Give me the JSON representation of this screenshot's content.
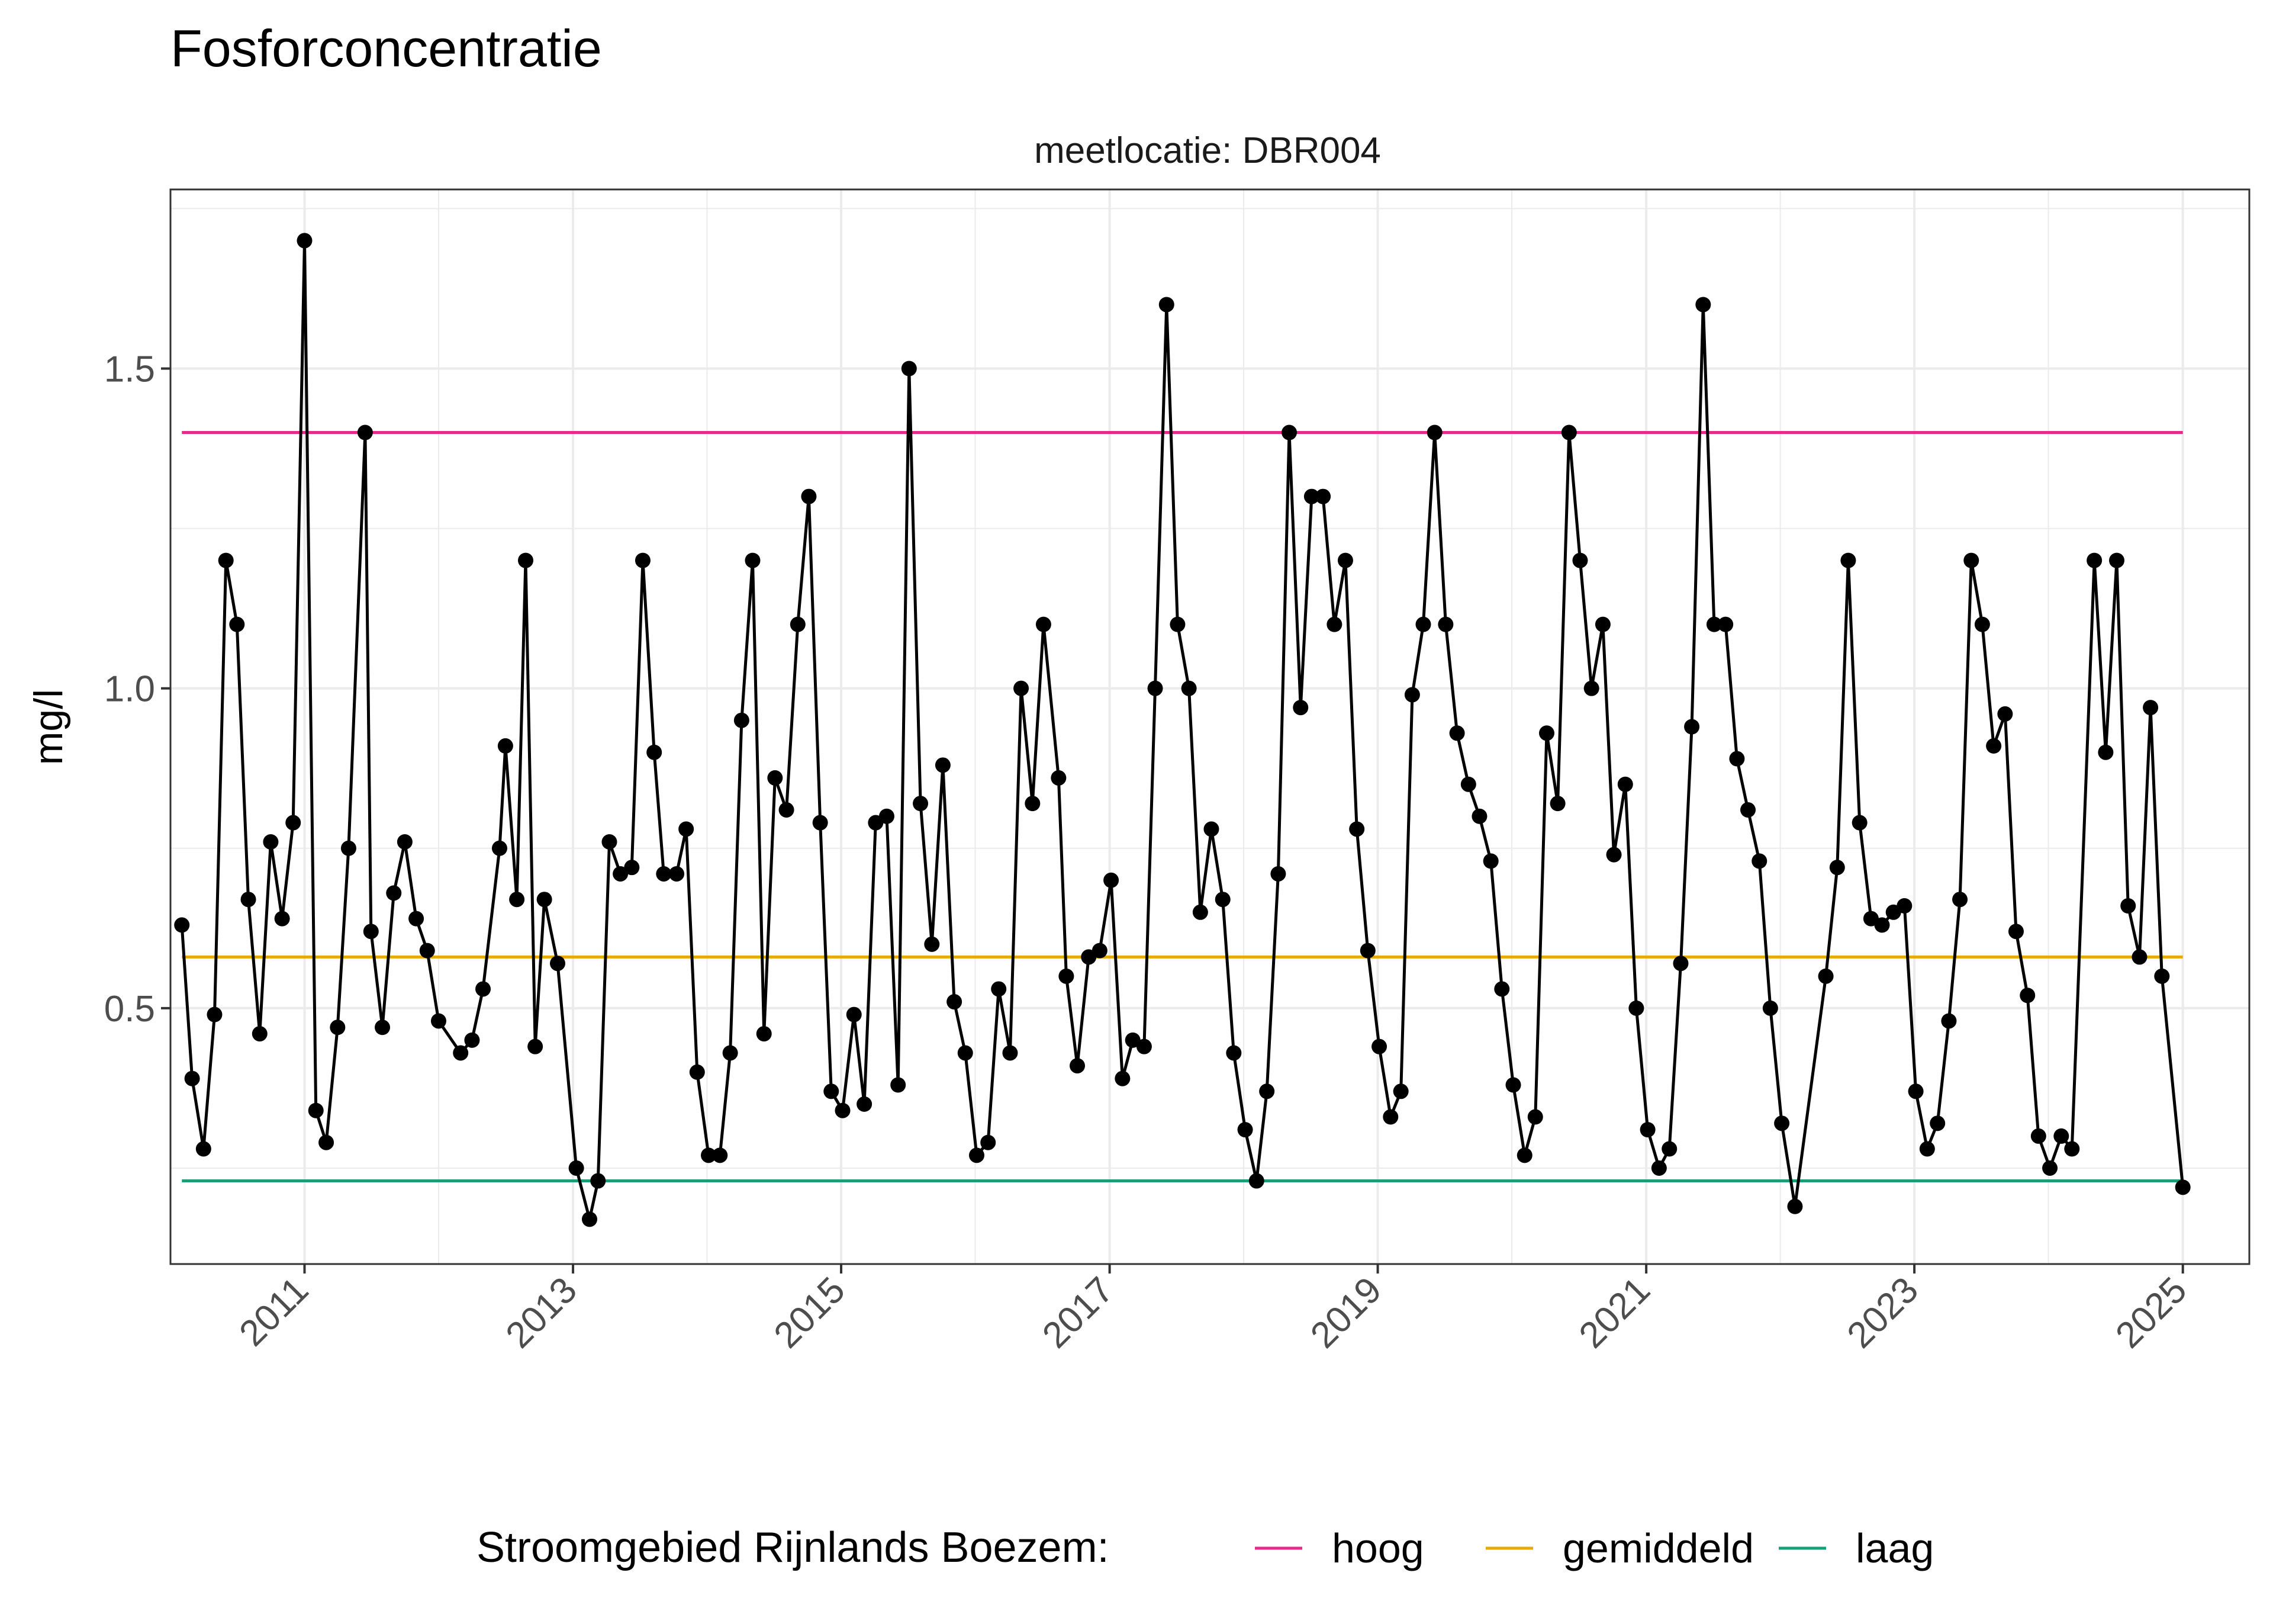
{
  "chart_data": {
    "type": "line",
    "title": "Fosforconcentratie",
    "subtitle": "meetlocatie: DBR004",
    "ylabel": "mg/l",
    "xlabel": "",
    "xlim": [
      "2010-01-01",
      "2025-07-01"
    ],
    "ylim": [
      0.1,
      1.78
    ],
    "y_ticks": [
      0.5,
      1.0,
      1.5
    ],
    "y_tick_labels": [
      "0.5",
      "1.0",
      "1.5"
    ],
    "x_ticks": [
      "2011-01-01",
      "2013-01-01",
      "2015-01-01",
      "2017-01-01",
      "2019-01-01",
      "2021-01-01",
      "2023-01-01",
      "2025-01-01"
    ],
    "x_tick_labels": [
      "2011",
      "2013",
      "2015",
      "2017",
      "2019",
      "2021",
      "2023",
      "2025"
    ],
    "grid": true,
    "legend_position": "bottom",
    "legend_title": "Stroomgebied Rijnlands Boezem:",
    "colors": {
      "data": "#000000",
      "hoog": "#e7298a",
      "gemiddeld": "#e6ab02",
      "laag": "#1b9e77",
      "grid": "#ebebeb",
      "panel_border": "#333333"
    },
    "reference_lines": [
      {
        "name": "hoog",
        "value": 1.4,
        "color": "#e7298a"
      },
      {
        "name": "gemiddeld",
        "value": 0.58,
        "color": "#e6ab02"
      },
      {
        "name": "laag",
        "value": 0.23,
        "color": "#1b9e77"
      }
    ],
    "reference_x_range": [
      "2010-02-01",
      "2025-01-01"
    ],
    "series": [
      {
        "points": [
          [
            "2010-02-01",
            0.63
          ],
          [
            "2010-03-01",
            0.39
          ],
          [
            "2010-04-01",
            0.28
          ],
          [
            "2010-05-01",
            0.49
          ],
          [
            "2010-06-01",
            1.2
          ],
          [
            "2010-07-01",
            1.1
          ],
          [
            "2010-08-01",
            0.67
          ],
          [
            "2010-09-01",
            0.46
          ],
          [
            "2010-10-01",
            0.76
          ],
          [
            "2010-11-01",
            0.64
          ],
          [
            "2010-12-01",
            0.79
          ],
          [
            "2011-01-01",
            1.7
          ],
          [
            "2011-02-01",
            0.34
          ],
          [
            "2011-03-01",
            0.29
          ],
          [
            "2011-04-01",
            0.47
          ],
          [
            "2011-05-01",
            0.75
          ],
          [
            "2011-06-15",
            1.4
          ],
          [
            "2011-07-01",
            0.62
          ],
          [
            "2011-08-01",
            0.47
          ],
          [
            "2011-09-01",
            0.68
          ],
          [
            "2011-10-01",
            0.76
          ],
          [
            "2011-11-01",
            0.64
          ],
          [
            "2011-12-01",
            0.59
          ],
          [
            "2012-01-01",
            0.48
          ],
          [
            "2012-03-01",
            0.43
          ],
          [
            "2012-04-01",
            0.45
          ],
          [
            "2012-05-01",
            0.53
          ],
          [
            "2012-06-15",
            0.75
          ],
          [
            "2012-07-01",
            0.91
          ],
          [
            "2012-08-01",
            0.67
          ],
          [
            "2012-08-25",
            1.2
          ],
          [
            "2012-09-20",
            0.44
          ],
          [
            "2012-10-15",
            0.67
          ],
          [
            "2012-11-20",
            0.57
          ],
          [
            "2013-01-10",
            0.25
          ],
          [
            "2013-02-15",
            0.17
          ],
          [
            "2013-03-10",
            0.23
          ],
          [
            "2013-04-10",
            0.76
          ],
          [
            "2013-05-10",
            0.71
          ],
          [
            "2013-06-10",
            0.72
          ],
          [
            "2013-07-10",
            1.2
          ],
          [
            "2013-08-10",
            0.9
          ],
          [
            "2013-09-05",
            0.71
          ],
          [
            "2013-10-10",
            0.71
          ],
          [
            "2013-11-05",
            0.78
          ],
          [
            "2013-12-05",
            0.4
          ],
          [
            "2014-01-05",
            0.27
          ],
          [
            "2014-02-05",
            0.27
          ],
          [
            "2014-03-05",
            0.43
          ],
          [
            "2014-04-05",
            0.95
          ],
          [
            "2014-05-05",
            1.2
          ],
          [
            "2014-06-05",
            0.46
          ],
          [
            "2014-07-05",
            0.86
          ],
          [
            "2014-08-05",
            0.81
          ],
          [
            "2014-09-05",
            1.1
          ],
          [
            "2014-10-05",
            1.3
          ],
          [
            "2014-11-05",
            0.79
          ],
          [
            "2014-12-05",
            0.37
          ],
          [
            "2015-01-05",
            0.34
          ],
          [
            "2015-02-05",
            0.49
          ],
          [
            "2015-03-05",
            0.35
          ],
          [
            "2015-04-05",
            0.79
          ],
          [
            "2015-05-05",
            0.8
          ],
          [
            "2015-06-05",
            0.38
          ],
          [
            "2015-07-05",
            1.5
          ],
          [
            "2015-08-05",
            0.82
          ],
          [
            "2015-09-05",
            0.6
          ],
          [
            "2015-10-05",
            0.88
          ],
          [
            "2015-11-05",
            0.51
          ],
          [
            "2015-12-05",
            0.43
          ],
          [
            "2016-01-05",
            0.27
          ],
          [
            "2016-02-05",
            0.29
          ],
          [
            "2016-03-05",
            0.53
          ],
          [
            "2016-04-05",
            0.43
          ],
          [
            "2016-05-05",
            1.0
          ],
          [
            "2016-06-05",
            0.82
          ],
          [
            "2016-07-05",
            1.1
          ],
          [
            "2016-08-15",
            0.86
          ],
          [
            "2016-09-05",
            0.55
          ],
          [
            "2016-10-05",
            0.41
          ],
          [
            "2016-11-05",
            0.58
          ],
          [
            "2016-12-05",
            0.59
          ],
          [
            "2017-01-05",
            0.7
          ],
          [
            "2017-02-05",
            0.39
          ],
          [
            "2017-03-05",
            0.45
          ],
          [
            "2017-04-05",
            0.44
          ],
          [
            "2017-05-05",
            1.0
          ],
          [
            "2017-06-05",
            1.6
          ],
          [
            "2017-07-05",
            1.1
          ],
          [
            "2017-08-05",
            1.0
          ],
          [
            "2017-09-05",
            0.65
          ],
          [
            "2017-10-05",
            0.78
          ],
          [
            "2017-11-05",
            0.67
          ],
          [
            "2017-12-05",
            0.43
          ],
          [
            "2018-01-05",
            0.31
          ],
          [
            "2018-02-05",
            0.23
          ],
          [
            "2018-03-05",
            0.37
          ],
          [
            "2018-04-05",
            0.71
          ],
          [
            "2018-05-05",
            1.4
          ],
          [
            "2018-06-05",
            0.97
          ],
          [
            "2018-07-05",
            1.3
          ],
          [
            "2018-08-05",
            1.3
          ],
          [
            "2018-09-05",
            1.1
          ],
          [
            "2018-10-05",
            1.2
          ],
          [
            "2018-11-05",
            0.78
          ],
          [
            "2018-12-05",
            0.59
          ],
          [
            "2019-01-05",
            0.44
          ],
          [
            "2019-02-05",
            0.33
          ],
          [
            "2019-03-05",
            0.37
          ],
          [
            "2019-04-05",
            0.99
          ],
          [
            "2019-05-05",
            1.1
          ],
          [
            "2019-06-05",
            1.4
          ],
          [
            "2019-07-05",
            1.1
          ],
          [
            "2019-08-05",
            0.93
          ],
          [
            "2019-09-05",
            0.85
          ],
          [
            "2019-10-05",
            0.8
          ],
          [
            "2019-11-05",
            0.73
          ],
          [
            "2019-12-05",
            0.53
          ],
          [
            "2020-01-05",
            0.38
          ],
          [
            "2020-02-05",
            0.27
          ],
          [
            "2020-03-05",
            0.33
          ],
          [
            "2020-04-05",
            0.93
          ],
          [
            "2020-05-05",
            0.82
          ],
          [
            "2020-06-05",
            1.4
          ],
          [
            "2020-07-05",
            1.2
          ],
          [
            "2020-08-05",
            1.0
          ],
          [
            "2020-09-05",
            1.1
          ],
          [
            "2020-10-05",
            0.74
          ],
          [
            "2020-11-05",
            0.85
          ],
          [
            "2020-12-05",
            0.5
          ],
          [
            "2021-01-05",
            0.31
          ],
          [
            "2021-02-05",
            0.25
          ],
          [
            "2021-03-05",
            0.28
          ],
          [
            "2021-04-05",
            0.57
          ],
          [
            "2021-05-05",
            0.94
          ],
          [
            "2021-06-05",
            1.6
          ],
          [
            "2021-07-05",
            1.1
          ],
          [
            "2021-08-05",
            1.1
          ],
          [
            "2021-09-05",
            0.89
          ],
          [
            "2021-10-05",
            0.81
          ],
          [
            "2021-11-05",
            0.73
          ],
          [
            "2021-12-05",
            0.5
          ],
          [
            "2022-01-05",
            0.32
          ],
          [
            "2022-02-10",
            0.19
          ],
          [
            "2022-05-05",
            0.55
          ],
          [
            "2022-06-05",
            0.72
          ],
          [
            "2022-07-05",
            1.2
          ],
          [
            "2022-08-05",
            0.79
          ],
          [
            "2022-09-05",
            0.64
          ],
          [
            "2022-10-05",
            0.63
          ],
          [
            "2022-11-05",
            0.65
          ],
          [
            "2022-12-05",
            0.66
          ],
          [
            "2023-01-05",
            0.37
          ],
          [
            "2023-02-05",
            0.28
          ],
          [
            "2023-03-05",
            0.32
          ],
          [
            "2023-04-05",
            0.48
          ],
          [
            "2023-05-05",
            0.67
          ],
          [
            "2023-06-05",
            1.2
          ],
          [
            "2023-07-05",
            1.1
          ],
          [
            "2023-08-05",
            0.91
          ],
          [
            "2023-09-05",
            0.96
          ],
          [
            "2023-10-05",
            0.62
          ],
          [
            "2023-11-05",
            0.52
          ],
          [
            "2023-12-05",
            0.3
          ],
          [
            "2024-01-05",
            0.25
          ],
          [
            "2024-02-05",
            0.3
          ],
          [
            "2024-03-05",
            0.28
          ],
          [
            "2024-05-05",
            1.2
          ],
          [
            "2024-06-05",
            0.9
          ],
          [
            "2024-07-05",
            1.2
          ],
          [
            "2024-08-05",
            0.66
          ],
          [
            "2024-09-05",
            0.58
          ],
          [
            "2024-10-05",
            0.97
          ],
          [
            "2024-11-05",
            0.55
          ],
          [
            "2025-01-01",
            0.22
          ]
        ]
      }
    ]
  }
}
